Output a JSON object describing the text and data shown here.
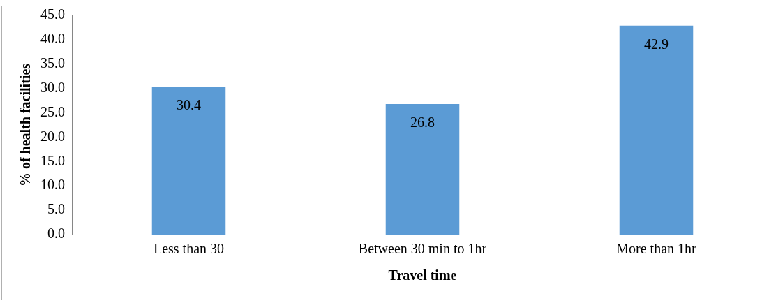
{
  "chart_data": {
    "type": "bar",
    "xlabel": "Travel time",
    "ylabel": "% of health facilities",
    "categories": [
      "Less than 30",
      "Between 30 min to 1hr",
      "More than 1hr"
    ],
    "values": [
      30.4,
      26.8,
      42.9
    ],
    "color": "#5b9bd5",
    "ylim": [
      0,
      45
    ],
    "yticks": [
      {
        "value": 0,
        "label": "0.0"
      },
      {
        "value": 5,
        "label": "5.0"
      },
      {
        "value": 10,
        "label": "10.0"
      },
      {
        "value": 15,
        "label": "15.0"
      },
      {
        "value": 20,
        "label": "20.0"
      },
      {
        "value": 25,
        "label": "25.0"
      },
      {
        "value": 30,
        "label": "30.0"
      },
      {
        "value": 35,
        "label": "35.0"
      },
      {
        "value": 40,
        "label": "40.0"
      },
      {
        "value": 45,
        "label": "45.0"
      }
    ],
    "data_labels": true,
    "grid": false,
    "legend": false
  }
}
